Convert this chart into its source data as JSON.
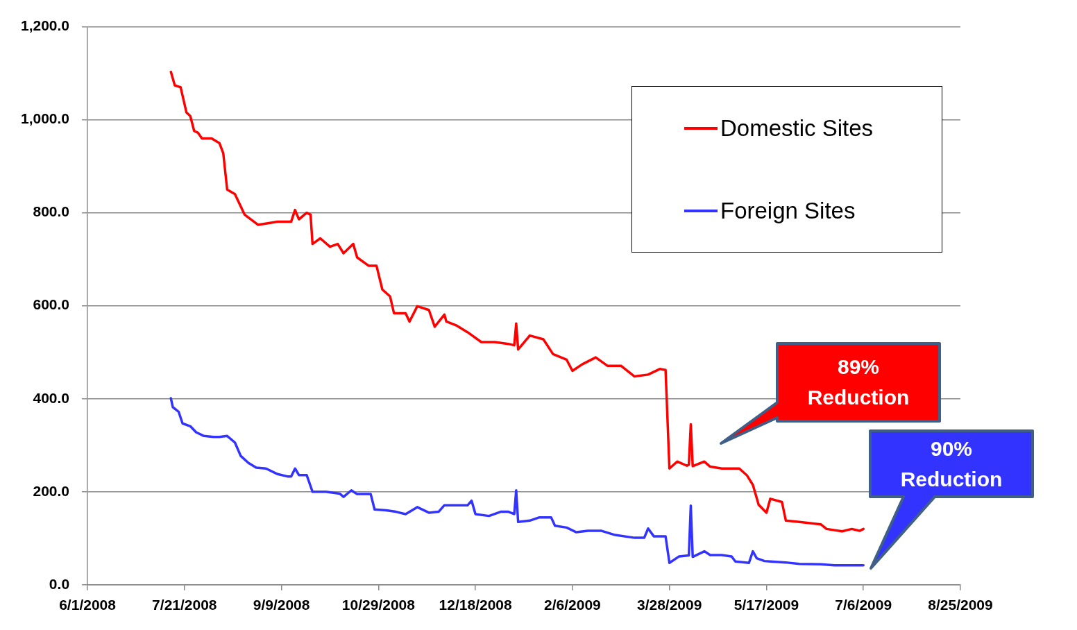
{
  "chart_data": {
    "type": "line",
    "xlim": [
      "2008-06-01",
      "2009-08-25"
    ],
    "xticks": [
      {
        "value": "2008-06-01",
        "label": "6/1/2008"
      },
      {
        "value": "2008-07-21",
        "label": "7/21/2008"
      },
      {
        "value": "2008-09-09",
        "label": "9/9/2008"
      },
      {
        "value": "2008-10-29",
        "label": "10/29/2008"
      },
      {
        "value": "2008-12-18",
        "label": "12/18/2008"
      },
      {
        "value": "2009-02-06",
        "label": "2/6/2009"
      },
      {
        "value": "2009-03-28",
        "label": "3/28/2009"
      },
      {
        "value": "2009-05-17",
        "label": "5/17/2009"
      },
      {
        "value": "2009-07-06",
        "label": "7/6/2009"
      },
      {
        "value": "2009-08-25",
        "label": "8/25/2009"
      }
    ],
    "ylim": [
      0,
      1200
    ],
    "yticks": [
      {
        "value": 0,
        "label": "0.0"
      },
      {
        "value": 200,
        "label": "200.0"
      },
      {
        "value": 400,
        "label": "400.0"
      },
      {
        "value": 600,
        "label": "600.0"
      },
      {
        "value": 800,
        "label": "800.0"
      },
      {
        "value": 1000,
        "label": "1,000.0"
      },
      {
        "value": 1200,
        "label": "1,200.0"
      }
    ],
    "grid": "y",
    "legend": "top right",
    "marker": "none",
    "line_style": "solid",
    "annotations": [
      "89% Reduction",
      "90% Reduction"
    ],
    "series": [
      {
        "name": "Domestic Sites",
        "color": "#ff0000",
        "x": [
          "2008-07-14",
          "2008-07-16",
          "2008-07-19",
          "2008-07-22",
          "2008-07-24",
          "2008-07-26",
          "2008-07-28",
          "2008-07-30",
          "2008-08-04",
          "2008-08-08",
          "2008-08-10",
          "2008-08-12",
          "2008-08-16",
          "2008-08-21",
          "2008-08-28",
          "2008-09-07",
          "2008-09-14",
          "2008-09-16",
          "2008-09-18",
          "2008-09-22",
          "2008-09-24",
          "2008-09-25",
          "2008-09-29",
          "2008-10-04",
          "2008-10-08",
          "2008-10-11",
          "2008-10-16",
          "2008-10-18",
          "2008-10-24",
          "2008-10-28",
          "2008-10-31",
          "2008-11-04",
          "2008-11-06",
          "2008-11-12",
          "2008-11-14",
          "2008-11-18",
          "2008-11-24",
          "2008-11-27",
          "2008-12-02",
          "2008-12-03",
          "2008-12-08",
          "2008-12-14",
          "2008-12-21",
          "2008-12-28",
          "2009-01-04",
          "2009-01-07",
          "2009-01-08",
          "2009-01-09",
          "2009-01-15",
          "2009-01-22",
          "2009-01-27",
          "2009-02-03",
          "2009-02-06",
          "2009-02-11",
          "2009-02-18",
          "2009-02-24",
          "2009-03-03",
          "2009-03-10",
          "2009-03-17",
          "2009-03-23",
          "2009-03-26",
          "2009-03-28",
          "2009-04-01",
          "2009-04-06",
          "2009-04-07",
          "2009-04-08",
          "2009-04-09",
          "2009-04-15",
          "2009-04-18",
          "2009-04-24",
          "2009-05-03",
          "2009-05-07",
          "2009-05-10",
          "2009-05-13",
          "2009-05-17",
          "2009-05-19",
          "2009-05-25",
          "2009-05-27",
          "2009-06-03",
          "2009-06-14",
          "2009-06-17",
          "2009-06-25",
          "2009-06-30",
          "2009-07-04",
          "2009-07-06"
        ],
        "values": [
          1103,
          1074,
          1070,
          1016,
          1008,
          976,
          972,
          960,
          960,
          950,
          928,
          850,
          840,
          796,
          774,
          781,
          781,
          806,
          786,
          800,
          796,
          733,
          745,
          727,
          733,
          713,
          733,
          704,
          686,
          686,
          635,
          620,
          584,
          584,
          566,
          599,
          591,
          555,
          581,
          566,
          558,
          543,
          522,
          522,
          518,
          515,
          562,
          506,
          536,
          528,
          496,
          484,
          460,
          474,
          489,
          471,
          471,
          448,
          452,
          464,
          462,
          250,
          265,
          256,
          258,
          345,
          255,
          265,
          254,
          250,
          250,
          235,
          215,
          172,
          155,
          185,
          178,
          138,
          135,
          130,
          120,
          115,
          120,
          116,
          120
        ]
      },
      {
        "name": "Foreign Sites",
        "color": "#3333ff",
        "x": [
          "2008-07-14",
          "2008-07-15",
          "2008-07-18",
          "2008-07-20",
          "2008-07-24",
          "2008-07-27",
          "2008-07-31",
          "2008-08-05",
          "2008-08-08",
          "2008-08-12",
          "2008-08-16",
          "2008-08-19",
          "2008-08-23",
          "2008-08-27",
          "2008-09-01",
          "2008-09-07",
          "2008-09-12",
          "2008-09-14",
          "2008-09-16",
          "2008-09-18",
          "2008-09-22",
          "2008-09-25",
          "2008-10-02",
          "2008-10-09",
          "2008-10-11",
          "2008-10-15",
          "2008-10-18",
          "2008-10-25",
          "2008-10-27",
          "2008-11-02",
          "2008-11-07",
          "2008-11-12",
          "2008-11-18",
          "2008-11-24",
          "2008-11-29",
          "2008-12-02",
          "2008-12-14",
          "2008-12-16",
          "2008-12-18",
          "2008-12-25",
          "2008-12-31",
          "2009-01-04",
          "2009-01-07",
          "2009-01-08",
          "2009-01-09",
          "2009-01-15",
          "2009-01-20",
          "2009-01-26",
          "2009-01-28",
          "2009-02-03",
          "2009-02-08",
          "2009-02-14",
          "2009-02-21",
          "2009-02-28",
          "2009-03-10",
          "2009-03-15",
          "2009-03-17",
          "2009-03-20",
          "2009-03-26",
          "2009-03-28",
          "2009-04-02",
          "2009-04-07",
          "2009-04-08",
          "2009-04-09",
          "2009-04-15",
          "2009-04-18",
          "2009-04-24",
          "2009-04-29",
          "2009-05-01",
          "2009-05-08",
          "2009-05-10",
          "2009-05-12",
          "2009-05-16",
          "2009-05-19",
          "2009-05-27",
          "2009-06-03",
          "2009-06-14",
          "2009-06-21",
          "2009-07-06"
        ],
        "values": [
          401,
          382,
          372,
          347,
          341,
          328,
          320,
          318,
          318,
          320,
          306,
          277,
          262,
          252,
          250,
          238,
          233,
          233,
          250,
          236,
          236,
          200,
          200,
          196,
          189,
          203,
          195,
          195,
          162,
          160,
          157,
          152,
          167,
          155,
          157,
          171,
          171,
          181,
          152,
          148,
          157,
          157,
          152,
          203,
          135,
          138,
          145,
          145,
          127,
          123,
          113,
          116,
          116,
          107,
          101,
          101,
          121,
          104,
          104,
          47,
          61,
          63,
          170,
          60,
          72,
          64,
          64,
          61,
          50,
          47,
          72,
          57,
          51,
          50,
          48,
          45,
          44,
          42,
          42
        ]
      }
    ]
  }
}
